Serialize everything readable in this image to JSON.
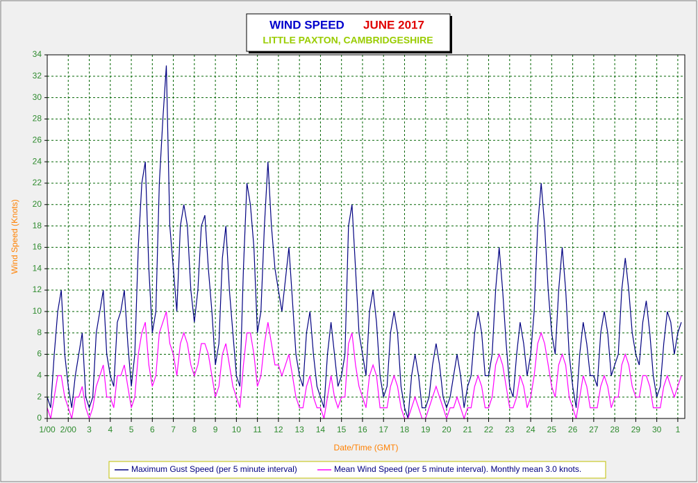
{
  "chart_data": {
    "type": "line",
    "title": "WIND SPEED",
    "title_month": "JUNE 2017",
    "subtitle": "LITTLE PAXTON, CAMBRIDGESHIRE",
    "x_label": "Date/Time (GMT)",
    "y_label": "Wind Speed (Knots)",
    "x": [
      0,
      4,
      8,
      12,
      16,
      20,
      24,
      28,
      32,
      36,
      40,
      44,
      48,
      52,
      56,
      60,
      64,
      68,
      72,
      76,
      80,
      84,
      88,
      92,
      96,
      100,
      104,
      108,
      112,
      116,
      120,
      124,
      128,
      132,
      136,
      140,
      144,
      148,
      152,
      156,
      160,
      164,
      168,
      172,
      176,
      180,
      184,
      188,
      192,
      196,
      200,
      204,
      208,
      212,
      216,
      220,
      224,
      228,
      232,
      236,
      240,
      244,
      248,
      252,
      256,
      260,
      264,
      268,
      272,
      276,
      280,
      284,
      288,
      292,
      296,
      300,
      304,
      308,
      312,
      316,
      320,
      324,
      328,
      332,
      336,
      340,
      344,
      348,
      352,
      356,
      360,
      364,
      368,
      372,
      376,
      380,
      384,
      388,
      392,
      396,
      400,
      404,
      408,
      412,
      416,
      420,
      424,
      428,
      432,
      436,
      440,
      444,
      448,
      452,
      456,
      460,
      464,
      468,
      472,
      476,
      480,
      484,
      488,
      492,
      496,
      500,
      504,
      508,
      512,
      516,
      520,
      524,
      528,
      532,
      536,
      540,
      544,
      548,
      552,
      556,
      560,
      564,
      568,
      572,
      576,
      580,
      584,
      588,
      592,
      596,
      600,
      604,
      608,
      612,
      616,
      620,
      624,
      628,
      632,
      636,
      640,
      644,
      648,
      652,
      656,
      660,
      664,
      668,
      672,
      676,
      680,
      684,
      688,
      692,
      696,
      700,
      704,
      708,
      712,
      716,
      720,
      724
    ],
    "series": [
      {
        "name": "Maximum Gust Speed (per 5 minute interval)",
        "color": "#000080",
        "values": [
          2,
          1,
          6,
          10,
          12,
          6,
          3,
          1,
          4,
          6,
          8,
          2,
          1,
          2,
          8,
          10,
          12,
          6,
          4,
          3,
          9,
          10,
          12,
          7,
          3,
          6,
          16,
          22,
          24,
          14,
          8,
          10,
          22,
          28,
          33,
          18,
          14,
          10,
          18,
          20,
          18,
          12,
          9,
          12,
          18,
          19,
          14,
          10,
          5,
          7,
          15,
          18,
          12,
          8,
          4,
          3,
          14,
          22,
          20,
          16,
          8,
          10,
          18,
          24,
          18,
          14,
          12,
          10,
          13,
          16,
          11,
          6,
          4,
          3,
          8,
          10,
          6,
          3,
          2,
          1,
          6,
          9,
          6,
          3,
          4,
          6,
          18,
          20,
          14,
          8,
          6,
          4,
          10,
          12,
          9,
          4,
          2,
          3,
          8,
          10,
          8,
          3,
          1,
          0,
          4,
          6,
          4,
          1,
          1,
          2,
          5,
          7,
          5,
          2,
          1,
          2,
          4,
          6,
          4,
          1,
          3,
          4,
          8,
          10,
          8,
          4,
          4,
          6,
          12,
          16,
          12,
          7,
          3,
          2,
          6,
          9,
          7,
          4,
          6,
          10,
          18,
          22,
          18,
          12,
          8,
          6,
          12,
          16,
          12,
          6,
          3,
          1,
          6,
          9,
          7,
          4,
          4,
          3,
          8,
          10,
          8,
          4,
          5,
          6,
          12,
          15,
          12,
          8,
          6,
          5,
          9,
          11,
          8,
          4,
          2,
          3,
          7,
          10,
          9,
          6,
          8,
          9
        ]
      },
      {
        "name": "Mean Wind Speed (per 5 minute interval). Monthly mean 3.0 knots.",
        "color": "#ff00ff",
        "values": [
          1,
          0,
          2,
          4,
          4,
          2,
          1,
          0,
          2,
          2,
          3,
          1,
          0,
          1,
          3,
          4,
          5,
          2,
          2,
          1,
          4,
          4,
          5,
          3,
          1,
          2,
          6,
          8,
          9,
          5,
          3,
          4,
          8,
          9,
          10,
          7,
          6,
          4,
          7,
          8,
          7,
          5,
          4,
          5,
          7,
          7,
          6,
          4,
          2,
          3,
          6,
          7,
          5,
          3,
          2,
          1,
          5,
          8,
          8,
          6,
          3,
          4,
          7,
          9,
          7,
          5,
          5,
          4,
          5,
          6,
          4,
          2,
          1,
          1,
          3,
          4,
          2,
          1,
          1,
          0,
          2,
          4,
          2,
          1,
          2,
          2,
          7,
          8,
          5,
          3,
          2,
          1,
          4,
          5,
          4,
          1,
          1,
          1,
          3,
          4,
          3,
          1,
          0,
          0,
          1,
          2,
          1,
          0,
          0,
          1,
          2,
          3,
          2,
          1,
          0,
          1,
          1,
          2,
          1,
          0,
          1,
          1,
          3,
          4,
          3,
          1,
          1,
          2,
          5,
          6,
          5,
          3,
          1,
          1,
          2,
          4,
          3,
          1,
          2,
          4,
          7,
          8,
          7,
          5,
          3,
          2,
          5,
          6,
          5,
          2,
          1,
          0,
          2,
          4,
          3,
          1,
          1,
          1,
          3,
          4,
          3,
          1,
          2,
          2,
          5,
          6,
          5,
          3,
          2,
          2,
          4,
          4,
          3,
          1,
          1,
          1,
          3,
          4,
          3,
          2,
          3,
          4
        ]
      }
    ],
    "xlim": [
      0,
      728
    ],
    "xticks": [
      {
        "value": 0,
        "label": "1/00"
      },
      {
        "value": 24,
        "label": "2/00"
      },
      {
        "value": 48,
        "label": "3"
      },
      {
        "value": 72,
        "label": "4"
      },
      {
        "value": 96,
        "label": "5"
      },
      {
        "value": 120,
        "label": "6"
      },
      {
        "value": 144,
        "label": "7"
      },
      {
        "value": 168,
        "label": "8"
      },
      {
        "value": 192,
        "label": "9"
      },
      {
        "value": 216,
        "label": "10"
      },
      {
        "value": 240,
        "label": "11"
      },
      {
        "value": 264,
        "label": "12"
      },
      {
        "value": 288,
        "label": "13"
      },
      {
        "value": 312,
        "label": "14"
      },
      {
        "value": 336,
        "label": "15"
      },
      {
        "value": 360,
        "label": "16"
      },
      {
        "value": 384,
        "label": "17"
      },
      {
        "value": 408,
        "label": "18"
      },
      {
        "value": 432,
        "label": "19"
      },
      {
        "value": 456,
        "label": "20"
      },
      {
        "value": 480,
        "label": "21"
      },
      {
        "value": 504,
        "label": "22"
      },
      {
        "value": 528,
        "label": "23"
      },
      {
        "value": 552,
        "label": "24"
      },
      {
        "value": 576,
        "label": "25"
      },
      {
        "value": 600,
        "label": "26"
      },
      {
        "value": 624,
        "label": "27"
      },
      {
        "value": 648,
        "label": "28"
      },
      {
        "value": 672,
        "label": "29"
      },
      {
        "value": 696,
        "label": "30"
      },
      {
        "value": 720,
        "label": "1"
      }
    ],
    "ylim": [
      0,
      34
    ],
    "yticks": [
      0,
      2,
      4,
      6,
      8,
      10,
      12,
      14,
      16,
      18,
      20,
      22,
      24,
      26,
      28,
      30,
      32,
      34
    ],
    "grid": true
  }
}
